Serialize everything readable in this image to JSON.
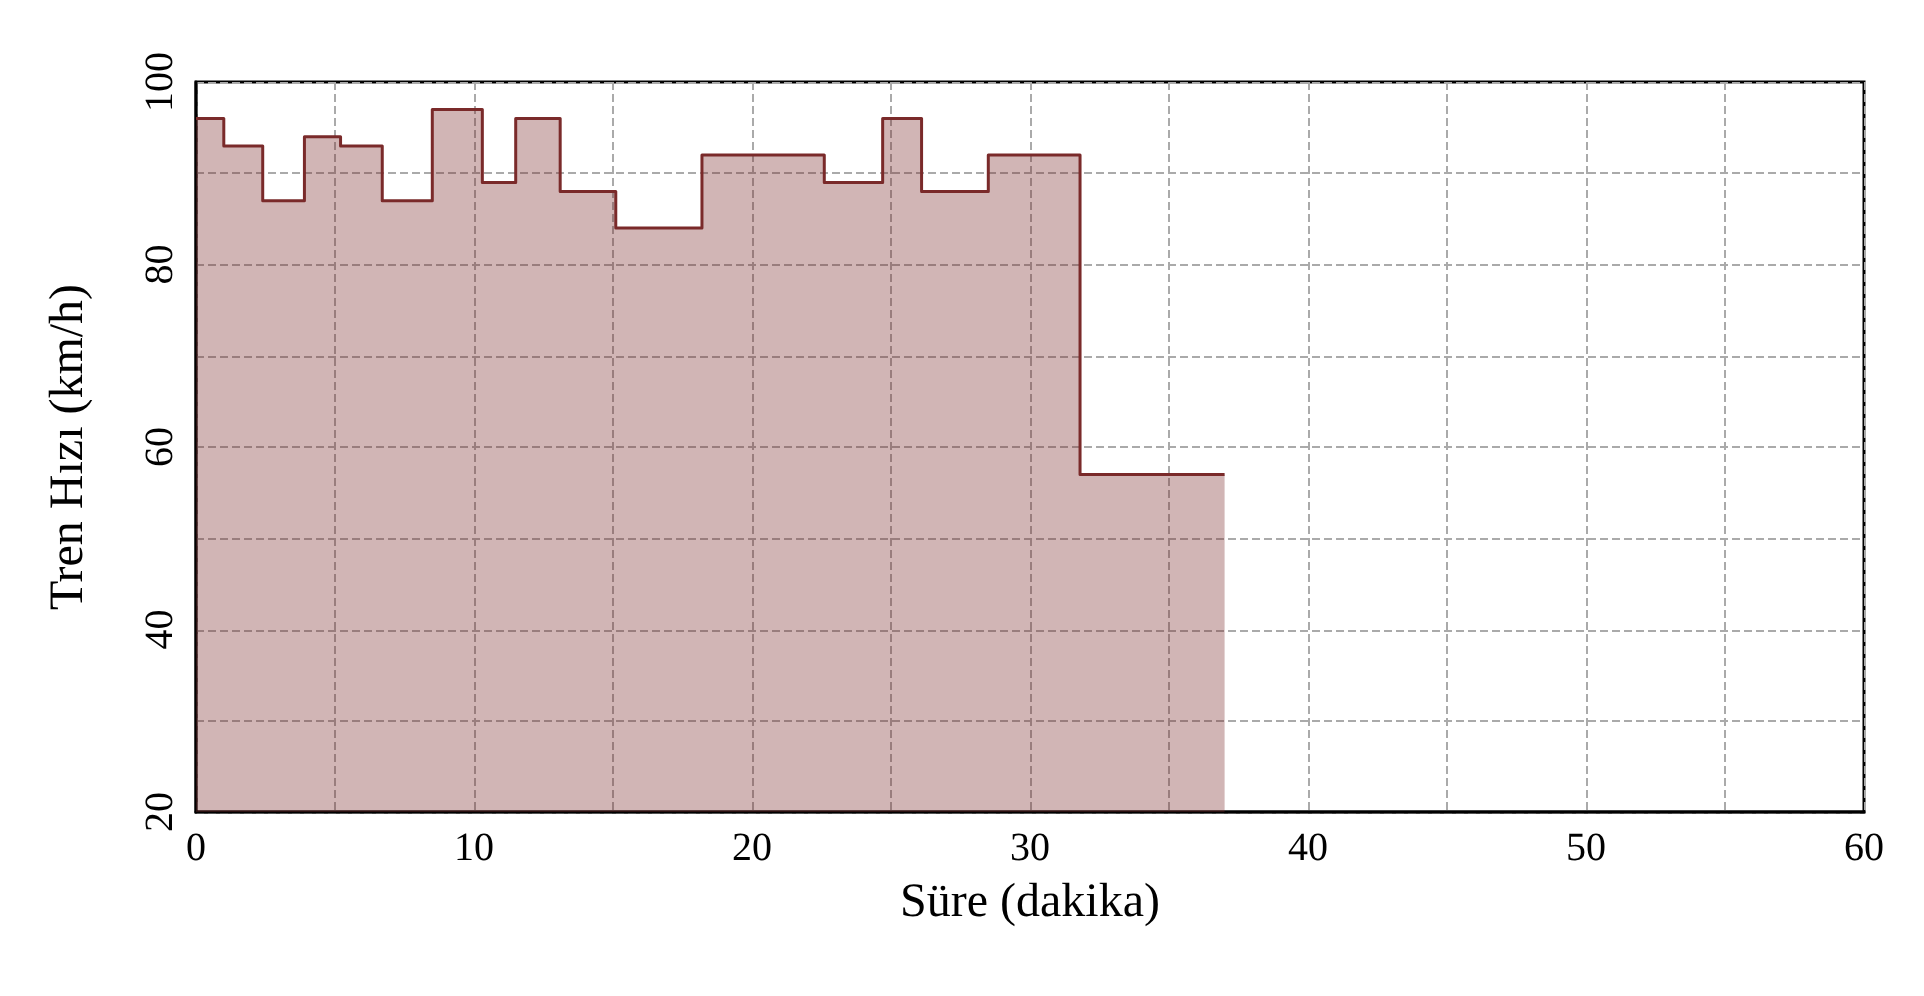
{
  "chart_data": {
    "type": "area",
    "xlabel": "Süre (dakika)",
    "ylabel": "Tren Hızı (km/h)",
    "x": [
      0,
      1,
      1,
      2.4,
      2.4,
      3.9,
      3.9,
      5.2,
      5.2,
      6.7,
      6.7,
      8.5,
      8.5,
      10.3,
      10.3,
      11.5,
      11.5,
      13.1,
      13.1,
      15.1,
      15.1,
      18.2,
      18.2,
      22.6,
      22.6,
      24.7,
      24.7,
      26.1,
      26.1,
      28.5,
      28.5,
      31.8,
      31.8,
      37
    ],
    "series": [
      {
        "color": "#7a2a2a",
        "values": [
          96,
          96,
          93,
          93,
          87,
          87,
          94,
          94,
          93,
          93,
          87,
          87,
          97,
          97,
          89,
          89,
          96,
          96,
          88,
          88,
          84,
          84,
          92,
          92,
          89,
          89,
          96,
          96,
          88,
          88,
          92,
          92,
          57,
          57
        ]
      }
    ],
    "xlim": [
      0,
      60
    ],
    "ylim": [
      20,
      100
    ],
    "xticks": [
      0,
      {
        "value": 5,
        "label": null
      },
      10,
      {
        "value": 15,
        "label": null
      },
      20,
      {
        "value": 25,
        "label": null
      },
      30,
      {
        "value": 35,
        "label": null
      },
      40,
      {
        "value": 45,
        "label": null
      },
      50,
      {
        "value": 55,
        "label": null
      },
      60
    ],
    "yticks": [
      20,
      {
        "value": 30,
        "label": null
      },
      40,
      {
        "value": 50,
        "label": null
      },
      60,
      {
        "value": 70,
        "label": null
      },
      80,
      {
        "value": 90,
        "label": null
      },
      100
    ],
    "grid": true,
    "marker": "none",
    "line_style": "solid"
  }
}
